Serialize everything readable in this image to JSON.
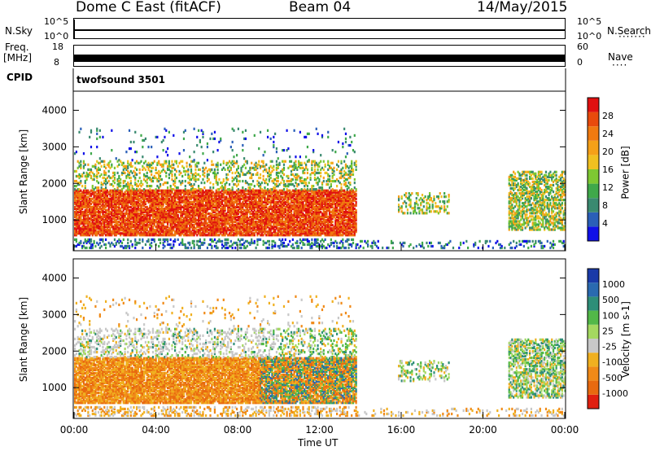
{
  "header": {
    "station": "Dome C East (fitACF)",
    "beam": "Beam 04",
    "date": "14/May/2015"
  },
  "top_panels": {
    "nsky_label": "N.Sky",
    "nsky_top": "10^5",
    "nsky_bottom": "10^0",
    "nsearch_label": "N.Search",
    "nsearch_top": "10^5",
    "nsearch_bottom": "10^0",
    "freq_label_line1": "Freq.",
    "freq_label_line2": "[MHz]",
    "freq_top": "18",
    "freq_bottom": "8",
    "nave_label": "Nave",
    "nave_top": "60",
    "nave_bottom": "0",
    "cpid_label": "CPID",
    "cpid_value": "twofsound 3501"
  },
  "chart_data": [
    {
      "type": "heatmap",
      "panel": "power",
      "ylabel": "Slant Range [km]",
      "colorbar_label": "Power [dB]",
      "colorbar_ticks": [
        "4",
        "8",
        "12",
        "16",
        "20",
        "24",
        "28"
      ],
      "ylim": [
        180,
        4500
      ],
      "yticks": [
        1000,
        2000,
        3000,
        4000
      ],
      "colors": [
        "#1010e8",
        "#2a5fb8",
        "#3a8a70",
        "#3fa84a",
        "#7ec832",
        "#f0c020",
        "#f5a018",
        "#f07a10",
        "#e84a0c",
        "#e01010"
      ],
      "scatter_regions": [
        {
          "t": [
            0.0,
            13.8
          ],
          "r": [
            600,
            1800
          ],
          "level": "high"
        },
        {
          "t": [
            0.0,
            13.8
          ],
          "r": [
            1800,
            2600
          ],
          "level": "mid"
        },
        {
          "t": [
            15.8,
            18.2
          ],
          "r": [
            1200,
            1700
          ],
          "level": "mid"
        },
        {
          "t": [
            21.2,
            24.0
          ],
          "r": [
            800,
            2200
          ],
          "level": "mid"
        }
      ]
    },
    {
      "type": "heatmap",
      "panel": "velocity",
      "ylabel": "Slant Range [km]",
      "colorbar_label": "Velocity [m s-1]",
      "colorbar_ticks": [
        "1000",
        "500",
        "100",
        "25",
        "-25",
        "-100",
        "-500",
        "-1000"
      ],
      "ylim": [
        180,
        4500
      ],
      "yticks": [
        1000,
        2000,
        3000,
        4000
      ],
      "colors": [
        "#1a3aa8",
        "#2a6ab0",
        "#2e8e78",
        "#52b848",
        "#a4d860",
        "#c8c8c8",
        "#f0b020",
        "#f08a18",
        "#e86a10",
        "#e02010"
      ],
      "xlabel": "Time UT",
      "xticks": [
        "00:00",
        "04:00",
        "08:00",
        "12:00",
        "16:00",
        "20:00",
        "00:00"
      ],
      "xlim": [
        0,
        24
      ]
    }
  ]
}
